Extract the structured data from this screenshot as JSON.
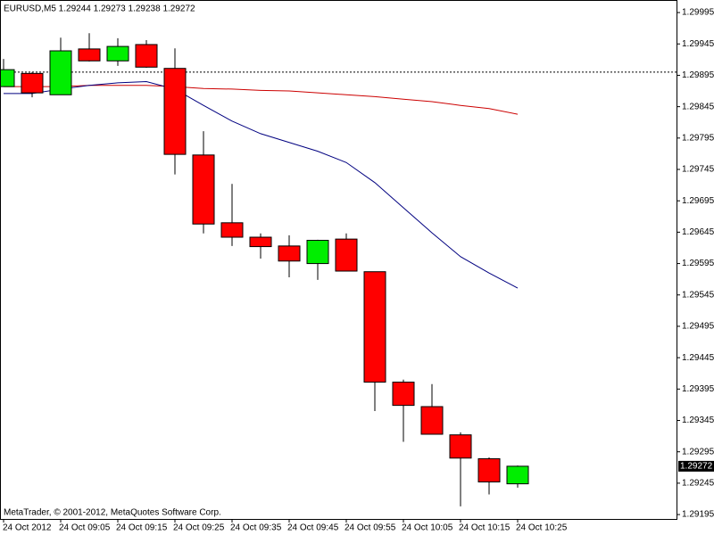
{
  "chart_data": {
    "type": "candlestick",
    "title": "EURUSD,M5  1.29244 1.29273 1.29238 1.29272",
    "footer": "MetaTrader, © 2001-2012, MetaQuotes Software Corp.",
    "categories": [
      "24 Oct 2012",
      null,
      "24 Oct 09:05",
      null,
      "24 Oct 09:15",
      null,
      "24 Oct 09:25",
      null,
      "24 Oct 09:35",
      null,
      "24 Oct 09:45",
      null,
      "24 Oct 09:55",
      null,
      "24 Oct 10:05",
      null,
      "24 Oct 10:15",
      null,
      "24 Oct 10:25"
    ],
    "open": [
      1.29877,
      1.29898,
      1.29864,
      1.29937,
      1.29918,
      1.29944,
      1.29906,
      1.29768,
      1.2966,
      1.29637,
      1.29623,
      1.29595,
      1.29634,
      1.29582,
      1.29406,
      1.29367,
      1.29322,
      1.29284,
      1.29244
    ],
    "high": [
      1.29921,
      1.299,
      1.29955,
      1.29962,
      1.29954,
      1.29951,
      1.29938,
      1.29806,
      1.29722,
      1.29643,
      1.2964,
      1.29633,
      1.29643,
      1.29582,
      1.2941,
      1.29403,
      1.29326,
      1.29286,
      1.29273
    ],
    "low": [
      1.29877,
      1.2986,
      1.29864,
      1.29917,
      1.2991,
      1.29907,
      1.29737,
      1.29643,
      1.29623,
      1.29603,
      1.29573,
      1.29569,
      1.29583,
      1.2936,
      1.29311,
      1.29323,
      1.29208,
      1.29227,
      1.29238
    ],
    "close": [
      1.29904,
      1.29867,
      1.29934,
      1.29918,
      1.29941,
      1.29908,
      1.29769,
      1.29658,
      1.29637,
      1.29622,
      1.29599,
      1.29632,
      1.29583,
      1.29406,
      1.29369,
      1.29323,
      1.29285,
      1.29247,
      1.29272
    ],
    "up_color": "#00ee00",
    "down_color": "#ff0000",
    "series": [
      {
        "color": "#cc0000",
        "values": [
          1.29877,
          1.29877,
          1.29877,
          1.29879,
          1.29879,
          1.29879,
          1.29877,
          1.29874,
          1.29873,
          1.29871,
          1.2987,
          1.29867,
          1.29864,
          1.29861,
          1.29857,
          1.29853,
          1.29847,
          1.29842,
          1.29833
        ]
      },
      {
        "color": "#000080",
        "values": [
          1.29866,
          1.29866,
          1.29873,
          1.29879,
          1.29883,
          1.29885,
          1.29873,
          1.29847,
          1.29822,
          1.29802,
          1.29788,
          1.29774,
          1.29756,
          1.29724,
          1.29684,
          1.29644,
          1.29606,
          1.2958,
          1.29556
        ]
      }
    ],
    "reference_line": 1.299,
    "ylim": [
      1.29188,
      1.30015
    ],
    "yticks": [
      1.29995,
      1.29945,
      1.29895,
      1.29845,
      1.29795,
      1.29745,
      1.29695,
      1.29645,
      1.29595,
      1.29545,
      1.29495,
      1.29445,
      1.29395,
      1.29345,
      1.29295,
      1.29245,
      1.29195
    ]
  }
}
